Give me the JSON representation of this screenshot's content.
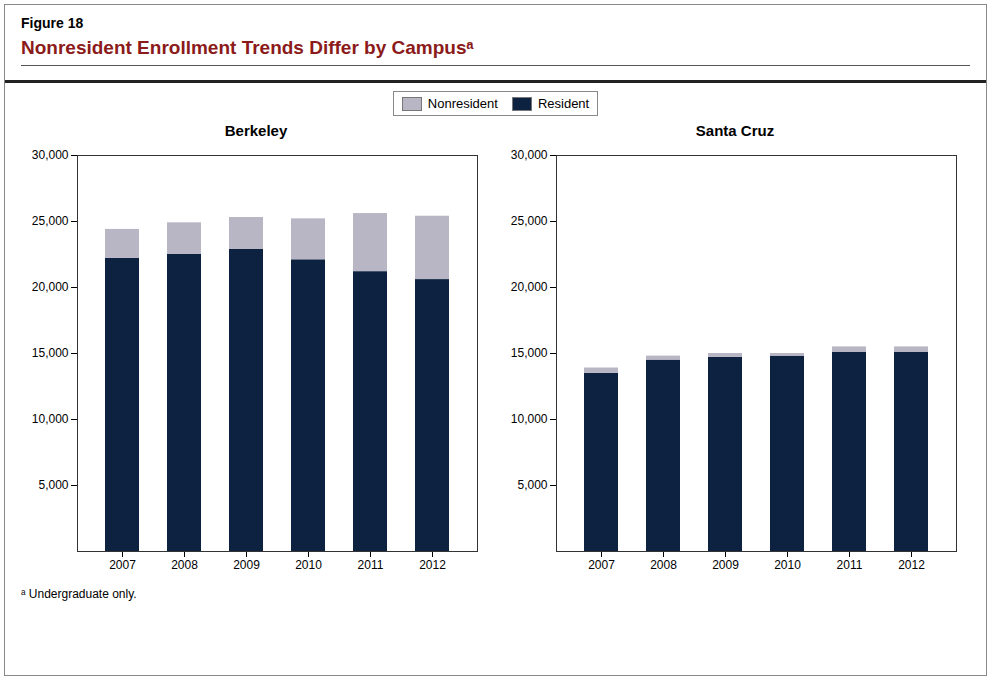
{
  "title": "Nonresident Enrollment Trends Differ by Campusᵃ",
  "annotations": [
    "Figure 18",
    "ᵃ Undergraduate only."
  ],
  "chart_data": [
    {
      "type": "bar",
      "title": "Berkeley",
      "stacked": true,
      "grid": false,
      "legend": "top",
      "categories": [
        "2007",
        "2008",
        "2009",
        "2010",
        "2011",
        "2012"
      ],
      "series": [
        {
          "name": "Resident",
          "color": "#0D2240",
          "values": [
            22200,
            22500,
            22900,
            22100,
            21200,
            20600
          ]
        },
        {
          "name": "Nonresident",
          "color": "#B8B5C4",
          "values": [
            2200,
            2400,
            2400,
            3100,
            4400,
            4800
          ]
        }
      ],
      "ylim": [
        0,
        30000
      ],
      "yticks": [
        {
          "value": 5000,
          "label": "5,000"
        },
        {
          "value": 10000,
          "label": "10,000"
        },
        {
          "value": 15000,
          "label": "15,000"
        },
        {
          "value": 20000,
          "label": "20,000"
        },
        {
          "value": 25000,
          "label": "25,000"
        },
        {
          "value": 30000,
          "label": "30,000"
        }
      ]
    },
    {
      "type": "bar",
      "title": "Santa Cruz",
      "stacked": true,
      "grid": false,
      "legend": "top",
      "categories": [
        "2007",
        "2008",
        "2009",
        "2010",
        "2011",
        "2012"
      ],
      "series": [
        {
          "name": "Resident",
          "color": "#0D2240",
          "values": [
            13500,
            14500,
            14700,
            14800,
            15100,
            15100
          ]
        },
        {
          "name": "Nonresident",
          "color": "#B8B5C4",
          "values": [
            400,
            300,
            300,
            200,
            400,
            400
          ]
        }
      ],
      "ylim": [
        0,
        30000
      ],
      "yticks": [
        {
          "value": 5000,
          "label": "5,000"
        },
        {
          "value": 10000,
          "label": "10,000"
        },
        {
          "value": 15000,
          "label": "15,000"
        },
        {
          "value": 20000,
          "label": "20,000"
        },
        {
          "value": 25000,
          "label": "25,000"
        },
        {
          "value": 30000,
          "label": "30,000"
        }
      ]
    }
  ]
}
